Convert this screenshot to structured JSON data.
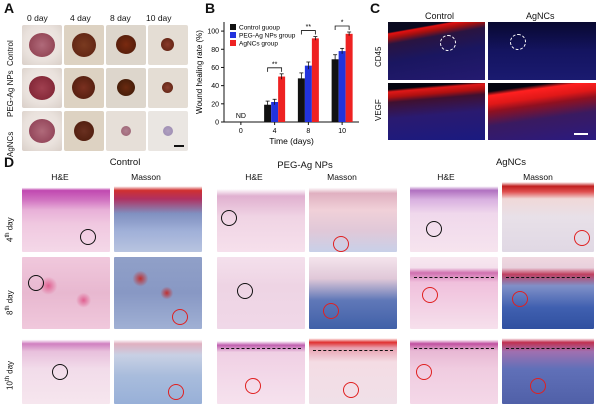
{
  "panels": {
    "a": {
      "letter": "A",
      "days": [
        "0 day",
        "4 day",
        "8 day",
        "10 day"
      ],
      "groups": [
        "Control",
        "PEG-Ag NPs",
        "AgNCs"
      ]
    },
    "b": {
      "letter": "B"
    },
    "c": {
      "letter": "C",
      "columns": [
        "Control",
        "AgNCs"
      ],
      "rows": [
        "CD45",
        "VEGF"
      ]
    },
    "d": {
      "letter": "D",
      "groups": [
        "Control",
        "PEG-Ag NPs",
        "AgNCs"
      ],
      "stains": [
        "H&E",
        "Masson",
        "H&E",
        "Masson",
        "H&E",
        "Masson"
      ],
      "row_labels": [
        {
          "num": "4",
          "sup": "th",
          "rest": " day"
        },
        {
          "num": "8",
          "sup": "th",
          "rest": " day"
        },
        {
          "num": "10",
          "sup": "th",
          "rest": " day"
        }
      ]
    }
  },
  "chart_data": {
    "type": "bar",
    "ylabel": "Wound healing rate (%)",
    "xlabel": "Time (days)",
    "categories": [
      "0",
      "4",
      "8",
      "10"
    ],
    "ylim": [
      0,
      110
    ],
    "yticks": [
      0,
      20,
      40,
      60,
      80,
      100
    ],
    "series": [
      {
        "name": "Control guoup",
        "color": "#111111",
        "values": [
          0,
          19,
          48,
          69
        ],
        "errors": [
          0,
          4,
          6,
          5
        ]
      },
      {
        "name": "PEG-Ag NPs group",
        "color": "#2233dd",
        "values": [
          0,
          22,
          62,
          78
        ],
        "errors": [
          0,
          3,
          4,
          3
        ]
      },
      {
        "name": "AgNCs group",
        "color": "#ee2222",
        "values": [
          0,
          50,
          92,
          97
        ],
        "errors": [
          0,
          3,
          2,
          2
        ]
      }
    ],
    "annotations": [
      "ND",
      "**",
      "**",
      "*"
    ],
    "legend": "top-left"
  }
}
